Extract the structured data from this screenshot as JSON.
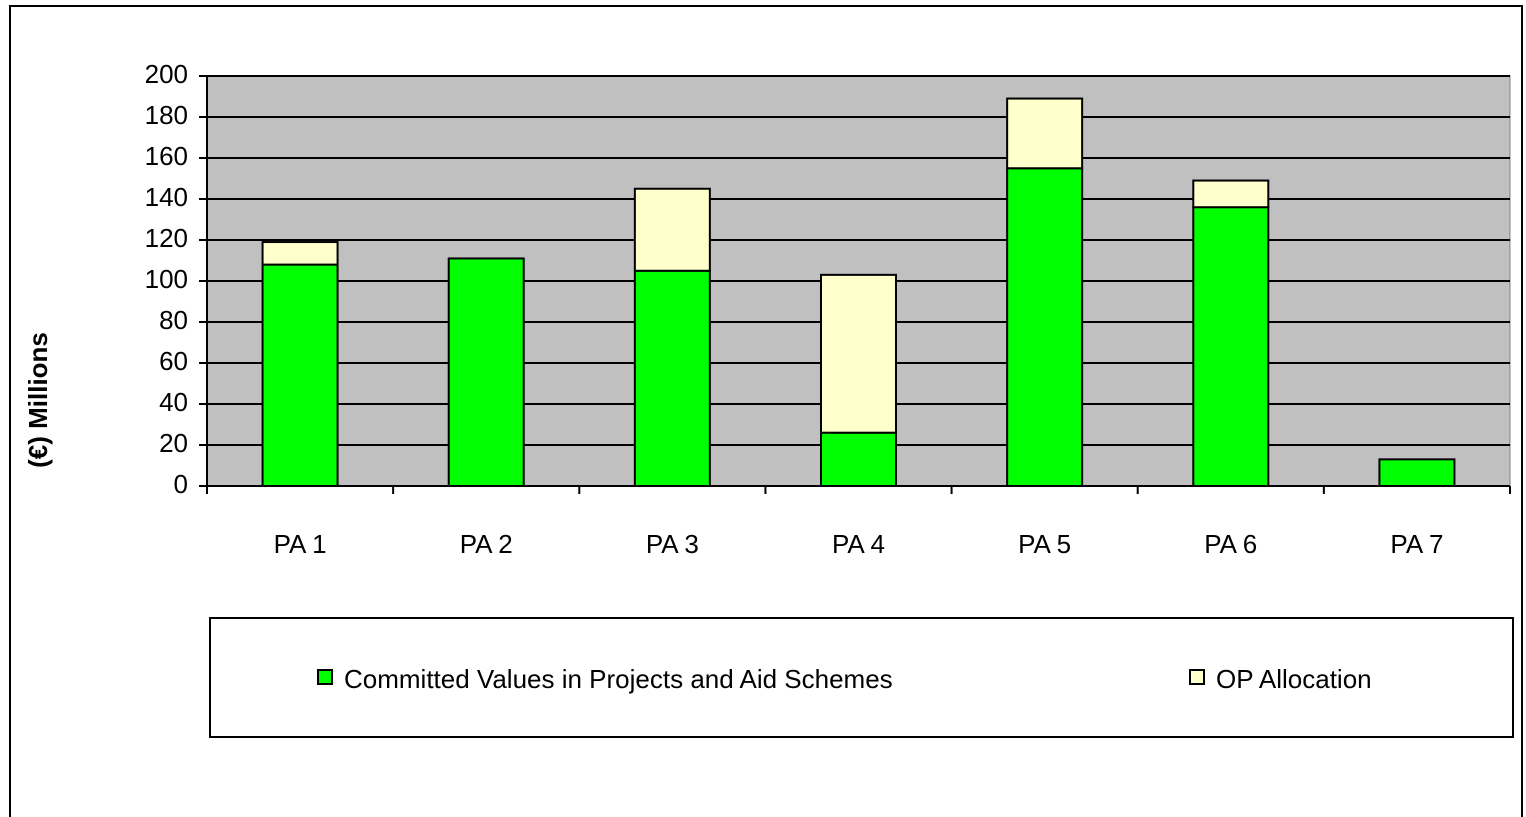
{
  "chart_data": {
    "type": "stacked_bar",
    "y_label": "(€) Millions",
    "categories": [
      "PA 1",
      "PA 2",
      "PA 3",
      "PA 4",
      "PA 5",
      "PA 6",
      "PA 7"
    ],
    "series": [
      {
        "name": "Committed Values in Projects and Aid Schemes",
        "color": "#00ff00",
        "values": [
          108,
          111,
          105,
          26,
          155,
          136,
          13
        ]
      },
      {
        "name": "OP Allocation",
        "color": "#ffffcc",
        "values": [
          11,
          0,
          40,
          77,
          34,
          13,
          0
        ]
      }
    ],
    "ylim": [
      0,
      200
    ],
    "yticks": [
      0,
      20,
      40,
      60,
      80,
      100,
      120,
      140,
      160,
      180,
      200
    ],
    "grid": true,
    "legend": "bottom"
  }
}
